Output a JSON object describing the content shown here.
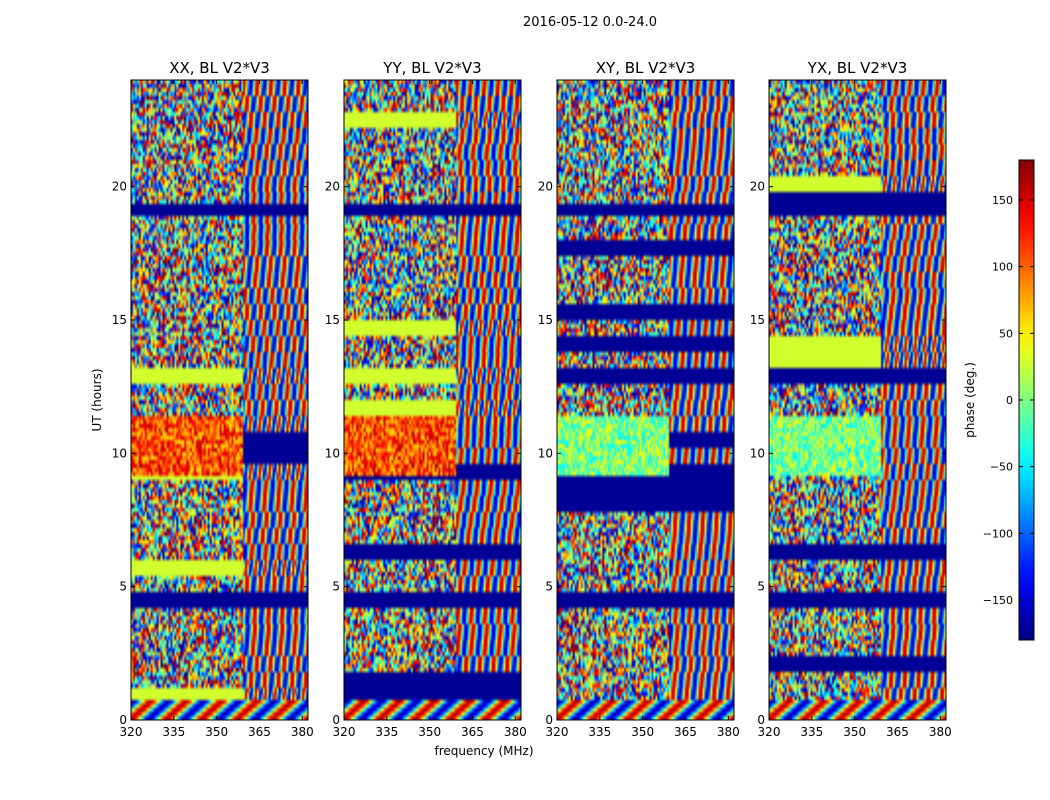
{
  "suptitle": "2016-05-12 0.0-24.0",
  "shared_xlabel": "frequency (MHz)",
  "colorbar": {
    "label": "phase (deg.)",
    "range": [
      -180,
      180
    ],
    "ticks": [
      -150,
      -100,
      -50,
      0,
      50,
      100,
      150
    ],
    "tick_labels": [
      "−150",
      "−100",
      "−50",
      "0",
      "50",
      "100",
      "150"
    ],
    "colormap": "jet"
  },
  "chart_data": [
    {
      "type": "heatmap",
      "title": "XX, BL V2*V3",
      "ylabel": "UT (hours)",
      "xlim": [
        320,
        382
      ],
      "ylim": [
        0,
        24
      ],
      "xticks": [
        320,
        335,
        350,
        365,
        380
      ],
      "yticks": [
        0,
        5,
        10,
        15,
        20
      ],
      "value": "phase (deg.)",
      "vmin": -180,
      "vmax": 180
    },
    {
      "type": "heatmap",
      "title": "YY, BL V2*V3",
      "ylabel": "",
      "xlim": [
        320,
        382
      ],
      "ylim": [
        0,
        24
      ],
      "xticks": [
        320,
        335,
        350,
        365,
        380
      ],
      "yticks": [
        0,
        5,
        10,
        15,
        20
      ],
      "value": "phase (deg.)",
      "vmin": -180,
      "vmax": 180
    },
    {
      "type": "heatmap",
      "title": "XY, BL V2*V3",
      "ylabel": "",
      "xlim": [
        320,
        382
      ],
      "ylim": [
        0,
        24
      ],
      "xticks": [
        320,
        335,
        350,
        365,
        380
      ],
      "yticks": [
        0,
        5,
        10,
        15,
        20
      ],
      "value": "phase (deg.)",
      "vmin": -180,
      "vmax": 180
    },
    {
      "type": "heatmap",
      "title": "YX, BL V2*V3",
      "ylabel": "",
      "xlim": [
        320,
        382
      ],
      "ylim": [
        0,
        24
      ],
      "xticks": [
        320,
        335,
        350,
        365,
        380
      ],
      "yticks": [
        0,
        5,
        10,
        15,
        20
      ],
      "value": "phase (deg.)",
      "vmin": -180,
      "vmax": 180
    }
  ]
}
